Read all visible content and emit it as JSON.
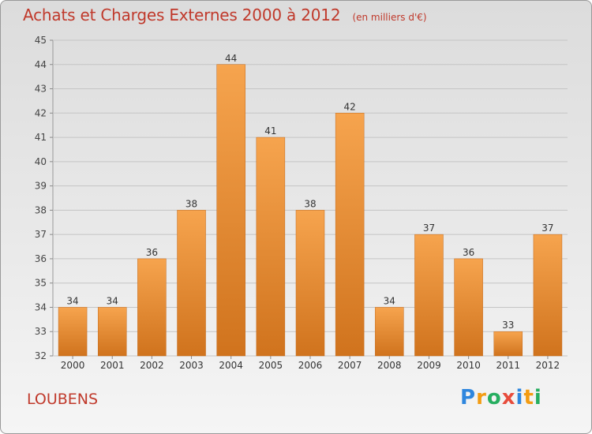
{
  "header": {
    "title": "Achats et Charges Externes 2000 à 2012",
    "subtitle": "(en milliers d'€)"
  },
  "footer": {
    "commune": "LOUBENS",
    "brand": "Proxiti"
  },
  "colors": {
    "bar_top": "#f6a44e",
    "bar_bottom": "#d0731d",
    "title": "#c0392b"
  },
  "chart_data": {
    "type": "bar",
    "title": "Achats et Charges Externes 2000 à 2012",
    "subtitle": "(en milliers d'€)",
    "categories": [
      "2000",
      "2001",
      "2002",
      "2003",
      "2004",
      "2005",
      "2006",
      "2007",
      "2008",
      "2009",
      "2010",
      "2011",
      "2012"
    ],
    "values": [
      34,
      34,
      36,
      38,
      44,
      41,
      38,
      42,
      34,
      37,
      36,
      33,
      37
    ],
    "ylim": [
      32,
      45
    ],
    "yticks": [
      32,
      33,
      34,
      35,
      36,
      37,
      38,
      39,
      40,
      41,
      42,
      43,
      44,
      45
    ],
    "grid": true,
    "data_labels": true
  }
}
